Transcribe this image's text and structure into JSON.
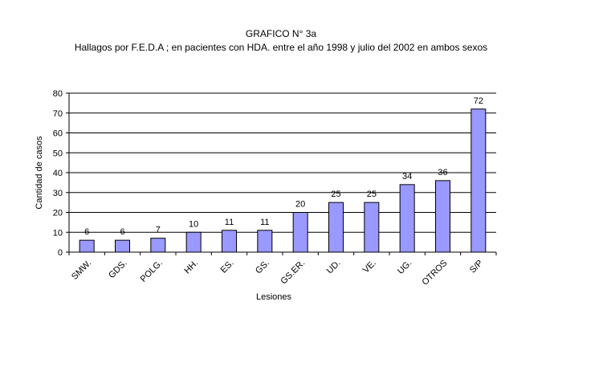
{
  "chart_data": {
    "type": "bar",
    "title": "GRAFICO N° 3a",
    "subtitle": "Hallagos por F.E.D.A ; en pacientes con HDA. entre el año 1998 y julio del 2002 en ambos sexos",
    "xlabel": "Lesiones",
    "ylabel": "Cantidad de casos",
    "categories": [
      "SMW.",
      "GDS.",
      "POLG.",
      "HH.",
      "ES.",
      "GS.",
      "GS.ER.",
      "UD.",
      "VE.",
      "UG.",
      "OTROS",
      "S/P"
    ],
    "values": [
      6,
      6,
      7,
      10,
      11,
      11,
      20,
      25,
      25,
      34,
      36,
      72
    ],
    "ylim": [
      0,
      80
    ],
    "yticks": [
      0,
      10,
      20,
      30,
      40,
      50,
      60,
      70,
      80
    ],
    "grid": true,
    "legend": "none",
    "bar_color": "#9999ff",
    "bar_stroke": "#000000"
  }
}
